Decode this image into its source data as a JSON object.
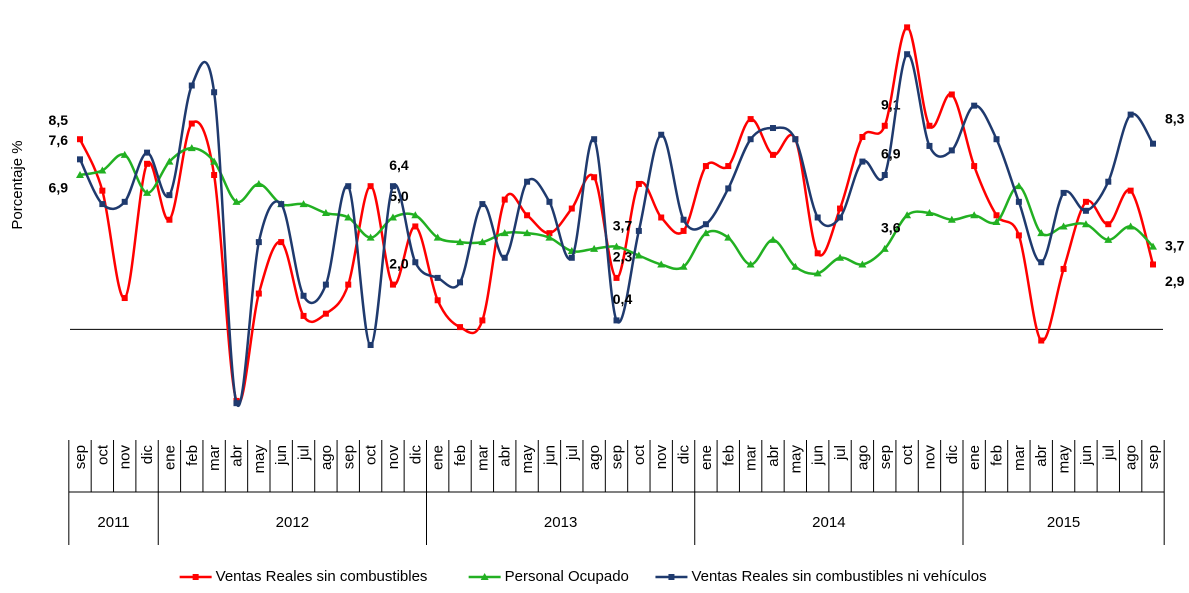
{
  "chart_data": {
    "type": "line",
    "y_label": "Porcentaje %",
    "categories": [
      "sep",
      "oct",
      "nov",
      "dic",
      "ene",
      "feb",
      "mar",
      "abr",
      "may",
      "jun",
      "jul",
      "ago",
      "sep",
      "oct",
      "nov",
      "dic",
      "ene",
      "feb",
      "mar",
      "abr",
      "may",
      "jun",
      "jul",
      "ago",
      "sep",
      "oct",
      "nov",
      "dic",
      "ene",
      "feb",
      "mar",
      "abr",
      "may",
      "jun",
      "jul",
      "ago",
      "sep",
      "oct",
      "nov",
      "dic",
      "ene",
      "feb",
      "mar",
      "abr",
      "may",
      "jun",
      "jul",
      "ago",
      "sep"
    ],
    "groups": [
      "2011",
      "2011",
      "2011",
      "2011",
      "2012",
      "2012",
      "2012",
      "2012",
      "2012",
      "2012",
      "2012",
      "2012",
      "2012",
      "2012",
      "2012",
      "2012",
      "2013",
      "2013",
      "2013",
      "2013",
      "2013",
      "2013",
      "2013",
      "2013",
      "2013",
      "2013",
      "2013",
      "2013",
      "2014",
      "2014",
      "2014",
      "2014",
      "2014",
      "2014",
      "2014",
      "2014",
      "2014",
      "2014",
      "2014",
      "2014",
      "2015",
      "2015",
      "2015",
      "2015",
      "2015",
      "2015",
      "2015",
      "2015",
      "2015"
    ],
    "ylim": [
      -4.5,
      14.5
    ],
    "legend": "bottom",
    "series": [
      {
        "name": "Ventas Reales sin combustibles",
        "color": "#ff0000",
        "label_color": "#e8101a",
        "marker": "square",
        "values": [
          8.5,
          6.2,
          1.4,
          7.4,
          4.9,
          9.2,
          6.9,
          -3.2,
          1.6,
          3.9,
          0.6,
          0.7,
          2.0,
          6.4,
          2.0,
          4.6,
          1.3,
          0.1,
          0.4,
          5.8,
          5.1,
          4.3,
          5.4,
          6.8,
          2.3,
          6.5,
          5.0,
          4.4,
          7.3,
          7.3,
          9.4,
          7.8,
          8.5,
          3.4,
          5.4,
          8.6,
          9.1,
          13.5,
          9.1,
          10.5,
          7.3,
          5.1,
          4.2,
          -0.5,
          2.7,
          5.7,
          4.7,
          6.2,
          2.9
        ],
        "value_labels": [
          "8,5",
          null,
          null,
          null,
          null,
          null,
          null,
          null,
          null,
          null,
          null,
          null,
          null,
          null,
          "2,0",
          null,
          null,
          null,
          null,
          null,
          null,
          null,
          null,
          null,
          "2,3",
          null,
          null,
          null,
          null,
          null,
          null,
          null,
          null,
          null,
          null,
          null,
          "9,1",
          null,
          null,
          null,
          null,
          null,
          null,
          null,
          null,
          null,
          null,
          null,
          "2,9"
        ]
      },
      {
        "name": "Personal Ocupado",
        "color": "#22b022",
        "label_color": "#1e8c1e",
        "marker": "triangle",
        "values": [
          6.9,
          7.1,
          7.8,
          6.1,
          7.5,
          8.1,
          7.5,
          5.7,
          6.5,
          5.6,
          5.6,
          5.2,
          5.0,
          4.1,
          5.0,
          5.1,
          4.1,
          3.9,
          3.9,
          4.3,
          4.3,
          4.1,
          3.5,
          3.6,
          3.7,
          3.3,
          2.9,
          2.8,
          4.3,
          4.1,
          2.9,
          4.0,
          2.8,
          2.5,
          3.2,
          2.9,
          3.6,
          5.1,
          5.2,
          4.9,
          5.1,
          4.8,
          6.4,
          4.3,
          4.6,
          4.7,
          4.0,
          4.6,
          3.7
        ],
        "value_labels": [
          "6,9",
          null,
          null,
          null,
          null,
          null,
          null,
          null,
          null,
          null,
          null,
          null,
          null,
          null,
          "5,0",
          null,
          null,
          null,
          null,
          null,
          null,
          null,
          null,
          null,
          "3,7",
          null,
          null,
          null,
          null,
          null,
          null,
          null,
          null,
          null,
          null,
          null,
          "3,6",
          null,
          null,
          null,
          null,
          null,
          null,
          null,
          null,
          null,
          null,
          null,
          "3,7"
        ]
      },
      {
        "name": "Ventas Reales sin combustibles ni vehículos",
        "color": "#1f3a6e",
        "label_color": "#1f3864",
        "marker": "square",
        "values": [
          7.6,
          5.6,
          5.7,
          7.9,
          6.0,
          10.9,
          10.6,
          -3.3,
          3.9,
          5.6,
          1.5,
          2.0,
          6.4,
          -0.7,
          6.4,
          3.0,
          2.3,
          2.1,
          5.6,
          3.2,
          6.6,
          5.7,
          3.2,
          8.5,
          0.4,
          4.4,
          8.7,
          4.9,
          4.7,
          6.3,
          8.5,
          9.0,
          8.5,
          5.0,
          5.0,
          7.5,
          6.9,
          12.3,
          8.2,
          8.0,
          10.0,
          8.5,
          5.7,
          3.0,
          6.1,
          5.3,
          6.6,
          9.6,
          8.3
        ],
        "value_labels": [
          "7,6",
          null,
          null,
          null,
          null,
          null,
          null,
          null,
          null,
          null,
          null,
          null,
          null,
          null,
          "6,4",
          null,
          null,
          null,
          null,
          null,
          null,
          null,
          null,
          null,
          "0,4",
          null,
          null,
          null,
          null,
          null,
          null,
          null,
          null,
          null,
          null,
          null,
          "6,9",
          null,
          null,
          null,
          null,
          null,
          null,
          null,
          null,
          null,
          null,
          null,
          "8,3"
        ]
      }
    ]
  }
}
